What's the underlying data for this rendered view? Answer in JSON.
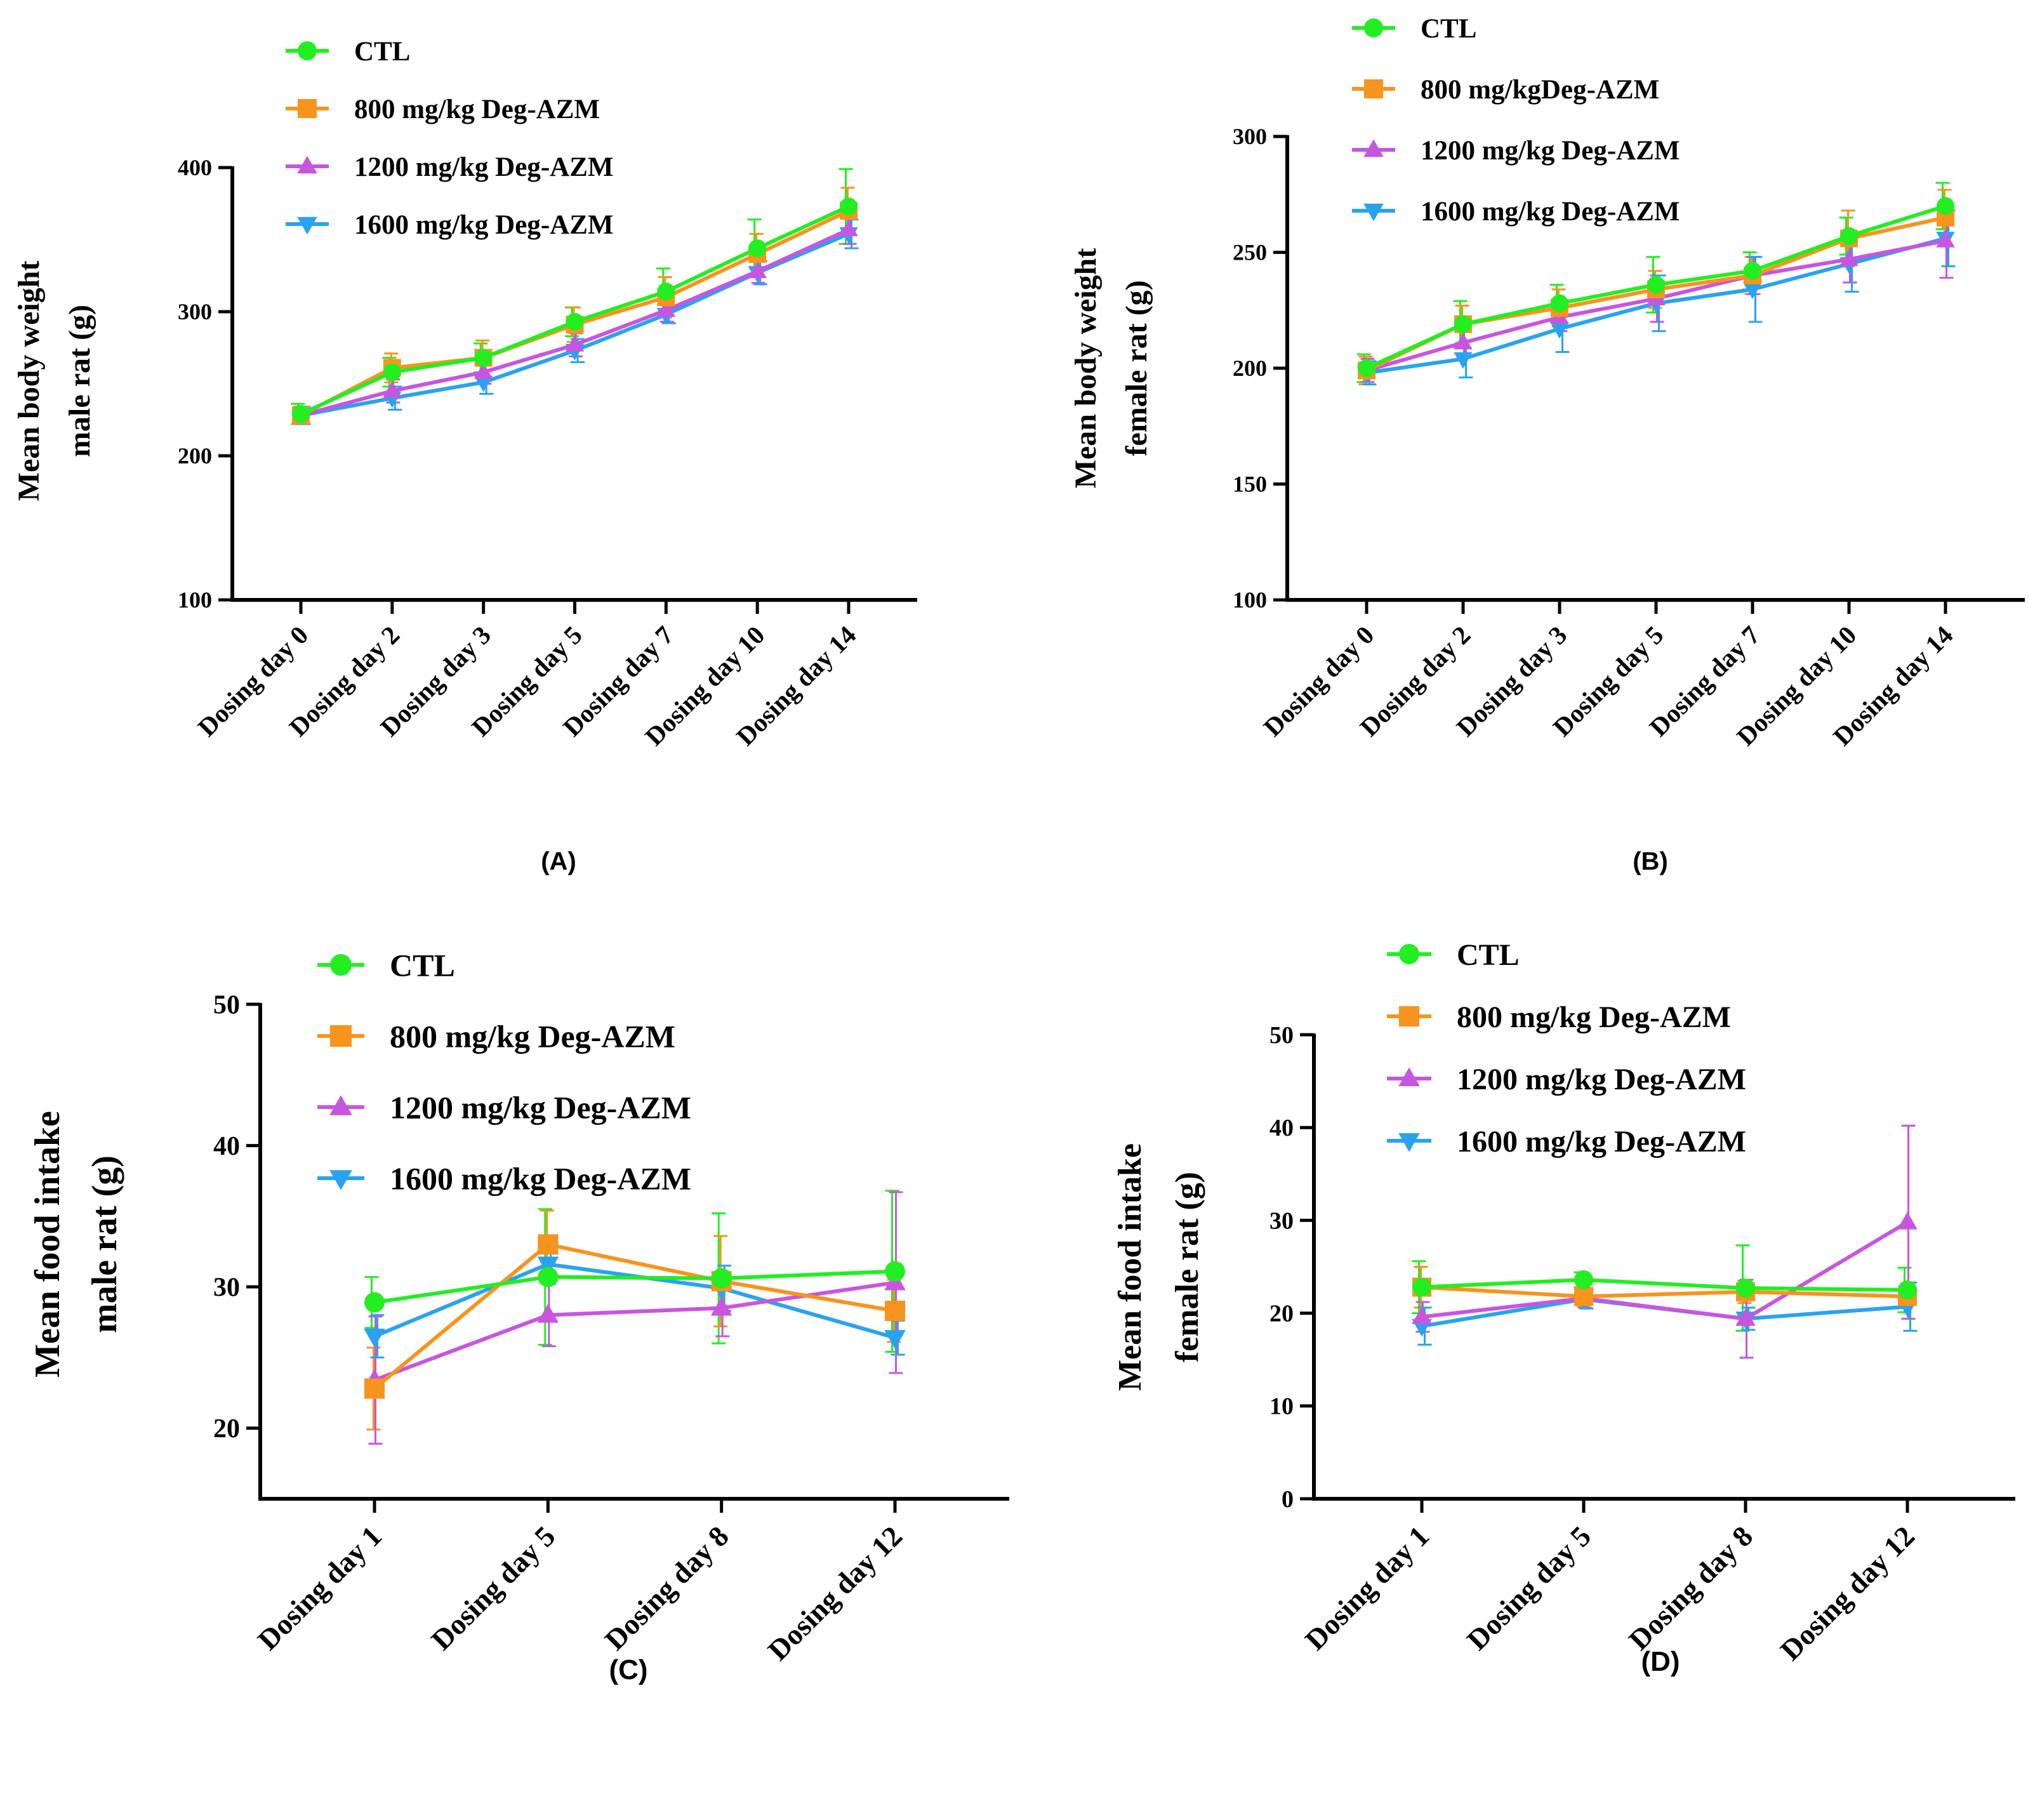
{
  "figure": {
    "colors": {
      "CTL": "#22ee22",
      "800 mg/kg Deg-AZM": "#f7941d",
      "1200 mg/kg Deg-AZM": "#c855e0",
      "1600 mg/kg Deg-AZM": "#29a3ef",
      "axis": "#000000"
    },
    "markers": [
      "circle",
      "square",
      "triangle-up",
      "triangle-down"
    ]
  },
  "chart_data": [
    {
      "id": "A",
      "panel_label": "(A)",
      "type": "line",
      "ylabel_line1": "Mean body weight",
      "ylabel_line2": "male rat (g)",
      "ylim": [
        100,
        400
      ],
      "yticks": [
        100,
        200,
        300,
        400
      ],
      "categories": [
        "Dosing day 0",
        "Dosing day 2",
        "Dosing day 3",
        "Dosing day 5",
        "Dosing day 7",
        "Dosing day 10",
        "Dosing day 14"
      ],
      "legend": [
        "CTL",
        "800 mg/kg Deg-AZM",
        "1200 mg/kg Deg-AZM",
        "1600 mg/kg Deg-AZM"
      ],
      "series": [
        {
          "name": "CTL",
          "values": [
            229,
            258,
            268,
            293,
            314,
            344,
            373
          ],
          "errors": [
            7,
            10,
            10,
            10,
            16,
            20,
            26
          ]
        },
        {
          "name": "800 mg/kg Deg-AZM",
          "values": [
            228,
            261,
            268,
            291,
            310,
            340,
            370
          ],
          "errors": [
            6,
            10,
            12,
            12,
            14,
            14,
            16
          ]
        },
        {
          "name": "1200 mg/kg Deg-AZM",
          "values": [
            228,
            245,
            258,
            277,
            301,
            328,
            357
          ],
          "errors": [
            6,
            8,
            8,
            8,
            8,
            8,
            10
          ]
        },
        {
          "name": "1600 mg/kg Deg-AZM",
          "values": [
            228,
            240,
            251,
            273,
            298,
            327,
            354
          ],
          "errors": [
            6,
            8,
            8,
            8,
            6,
            8,
            10
          ]
        }
      ]
    },
    {
      "id": "B",
      "panel_label": "(B)",
      "type": "line",
      "ylabel_line1": "Mean body weight",
      "ylabel_line2": "female rat (g)",
      "ylim": [
        100,
        300
      ],
      "yticks": [
        100,
        150,
        200,
        250,
        300
      ],
      "categories": [
        "Dosing day 0",
        "Dosing day 2",
        "Dosing day 3",
        "Dosing day 5",
        "Dosing day 7",
        "Dosing day 10",
        "Dosing day 14"
      ],
      "legend": [
        "CTL",
        "800 mg/kgDeg-AZM",
        "1200 mg/kg Deg-AZM",
        "1600 mg/kg Deg-AZM"
      ],
      "series": [
        {
          "name": "CTL",
          "values": [
            200,
            219,
            228,
            236,
            242,
            257,
            270
          ],
          "errors": [
            6,
            10,
            8,
            12,
            8,
            8,
            10
          ]
        },
        {
          "name": "800 mg/kgDeg-AZM",
          "values": [
            199,
            219,
            226,
            234,
            240,
            256,
            265
          ],
          "errors": [
            6,
            8,
            8,
            8,
            8,
            12,
            12
          ]
        },
        {
          "name": "1200 mg/kg Deg-AZM",
          "values": [
            199,
            211,
            222,
            230,
            240,
            247,
            255
          ],
          "errors": [
            5,
            6,
            6,
            10,
            8,
            10,
            16
          ]
        },
        {
          "name": "1600 mg/kg Deg-AZM",
          "values": [
            198,
            204,
            217,
            228,
            234,
            245,
            256
          ],
          "errors": [
            5,
            8,
            10,
            12,
            14,
            12,
            12
          ]
        }
      ]
    },
    {
      "id": "C",
      "panel_label": "(C)",
      "type": "line",
      "ylabel_line1": "Mean food intake",
      "ylabel_line2": "male rat  (g)",
      "ylim": [
        15,
        50
      ],
      "yticks": [
        20,
        30,
        40,
        50
      ],
      "categories": [
        "Dosing day 1",
        "Dosing day 5",
        "Dosing day 8",
        "Dosing day 12"
      ],
      "legend": [
        "CTL",
        "800 mg/kg Deg-AZM",
        "1200 mg/kg Deg-AZM",
        "1600 mg/kg Deg-AZM"
      ],
      "series": [
        {
          "name": "CTL",
          "values": [
            28.9,
            30.7,
            30.6,
            31.1
          ],
          "errors": [
            1.8,
            4.8,
            4.6,
            5.7
          ]
        },
        {
          "name": "800 mg/kg Deg-AZM",
          "values": [
            22.8,
            33.0,
            30.4,
            28.3
          ],
          "errors": [
            2.9,
            2.4,
            3.2,
            2.2
          ]
        },
        {
          "name": "1200 mg/kg Deg-AZM",
          "values": [
            23.4,
            28.0,
            28.5,
            30.3
          ],
          "errors": [
            4.5,
            2.2,
            2.0,
            6.4
          ]
        },
        {
          "name": "1600 mg/kg Deg-AZM",
          "values": [
            26.5,
            31.6,
            29.9,
            26.4
          ],
          "errors": [
            1.5,
            1.2,
            1.6,
            1.2
          ]
        }
      ]
    },
    {
      "id": "D",
      "panel_label": "(D)",
      "type": "line",
      "ylabel_line1": "Mean food intake",
      "ylabel_line2": "female rat (g)",
      "ylim": [
        0,
        50
      ],
      "yticks": [
        0,
        10,
        20,
        30,
        40,
        50
      ],
      "categories": [
        "Dosing day 1",
        "Dosing day 5",
        "Dosing day 8",
        "Dosing day 12"
      ],
      "legend": [
        "CTL",
        "800 mg/kg Deg-AZM",
        "1200 mg/kg Deg-AZM",
        "1600 mg/kg Deg-AZM"
      ],
      "series": [
        {
          "name": "CTL",
          "values": [
            22.8,
            23.6,
            22.7,
            22.5
          ],
          "errors": [
            2.8,
            0.8,
            4.6,
            2.4
          ]
        },
        {
          "name": "800 mg/kg Deg-AZM",
          "values": [
            22.8,
            21.8,
            22.3,
            21.8
          ],
          "errors": [
            2.2,
            1.0,
            1.2,
            1.0
          ]
        },
        {
          "name": "1200 mg/kg Deg-AZM",
          "values": [
            19.6,
            21.6,
            19.4,
            29.8
          ],
          "errors": [
            1.6,
            1.0,
            4.2,
            10.4
          ]
        },
        {
          "name": "1600 mg/kg Deg-AZM",
          "values": [
            18.6,
            21.5,
            19.4,
            20.7
          ],
          "errors": [
            2.0,
            1.0,
            1.2,
            2.6
          ]
        }
      ]
    }
  ]
}
